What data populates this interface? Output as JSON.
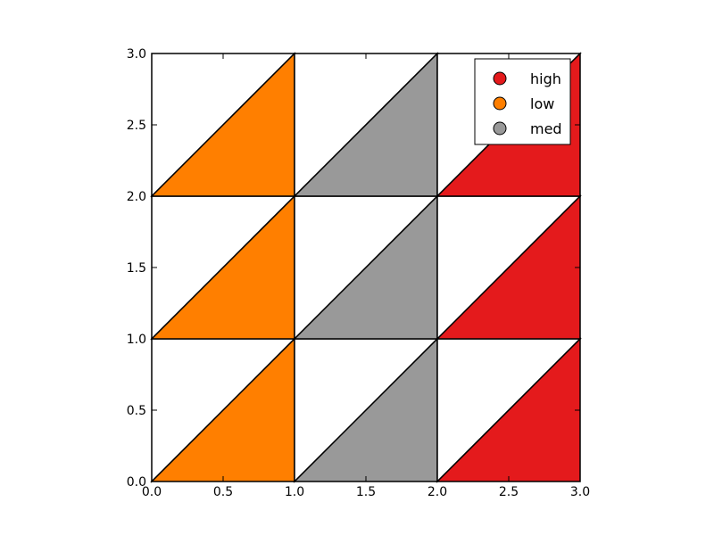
{
  "chart_data": {
    "type": "heatmap",
    "title": "",
    "xlabel": "",
    "ylabel": "",
    "xlim": [
      0,
      3
    ],
    "ylim": [
      0,
      3
    ],
    "x_ticks": [
      "0.0",
      "0.5",
      "1.0",
      "1.5",
      "2.0",
      "2.5",
      "3.0"
    ],
    "y_ticks": [
      "0.0",
      "0.5",
      "1.0",
      "1.5",
      "2.0",
      "2.5",
      "3.0"
    ],
    "grid": false,
    "legend_position": "top-right",
    "categories": {
      "high": "#e41a1c",
      "low": "#ff7f00",
      "med": "#999999"
    },
    "legend": [
      "high",
      "low",
      "med"
    ],
    "cells": [
      {
        "x": 0,
        "y": 0,
        "category": "low"
      },
      {
        "x": 1,
        "y": 0,
        "category": "med"
      },
      {
        "x": 2,
        "y": 0,
        "category": "high"
      },
      {
        "x": 0,
        "y": 1,
        "category": "low"
      },
      {
        "x": 1,
        "y": 1,
        "category": "med"
      },
      {
        "x": 2,
        "y": 1,
        "category": "high"
      },
      {
        "x": 0,
        "y": 2,
        "category": "low"
      },
      {
        "x": 1,
        "y": 2,
        "category": "med"
      },
      {
        "x": 2,
        "y": 2,
        "category": "high"
      }
    ],
    "edge_color": "#000000"
  }
}
